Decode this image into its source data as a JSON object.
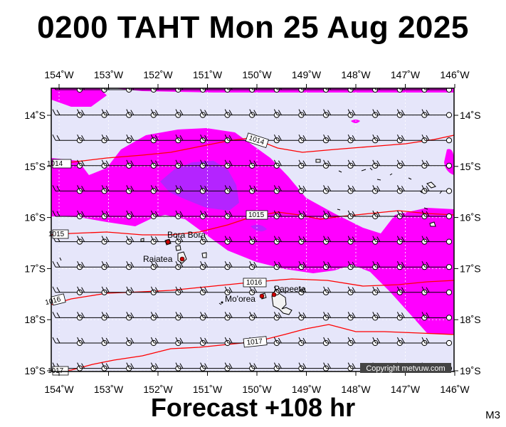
{
  "header": {
    "title": "0200 TAHT Mon 25 Aug 2025"
  },
  "footer": {
    "forecast": "Forecast +108 hr",
    "model": "M3"
  },
  "copyright": "Copyright metvuw.com",
  "map": {
    "lon_labels": [
      "154˚W",
      "153˚W",
      "152˚W",
      "151˚W",
      "150˚W",
      "149˚W",
      "148˚W",
      "147˚W",
      "146˚W"
    ],
    "lat_labels": [
      "14˚S",
      "15˚S",
      "16˚S",
      "17˚S",
      "18˚S",
      "19˚S"
    ],
    "colors": {
      "background": "#e6e6fa",
      "rain_light": "#ff00ff",
      "rain_heavy": "#9b30ff",
      "isobar": "#ff0000",
      "land": "#f2f2f2"
    },
    "places": [
      {
        "name": "Bora Bora",
        "lon": -151.75,
        "lat": -16.5
      },
      {
        "name": "Raiatea",
        "lon": -151.45,
        "lat": -16.83
      },
      {
        "name": "Mo'orea",
        "lon": -149.83,
        "lat": -17.53
      },
      {
        "name": "Papeete",
        "lon": -149.57,
        "lat": -17.53
      }
    ],
    "isobar_labels": [
      "1014",
      "1014",
      "1015",
      "1015",
      "1016",
      "1016",
      "1017",
      "1017"
    ]
  }
}
